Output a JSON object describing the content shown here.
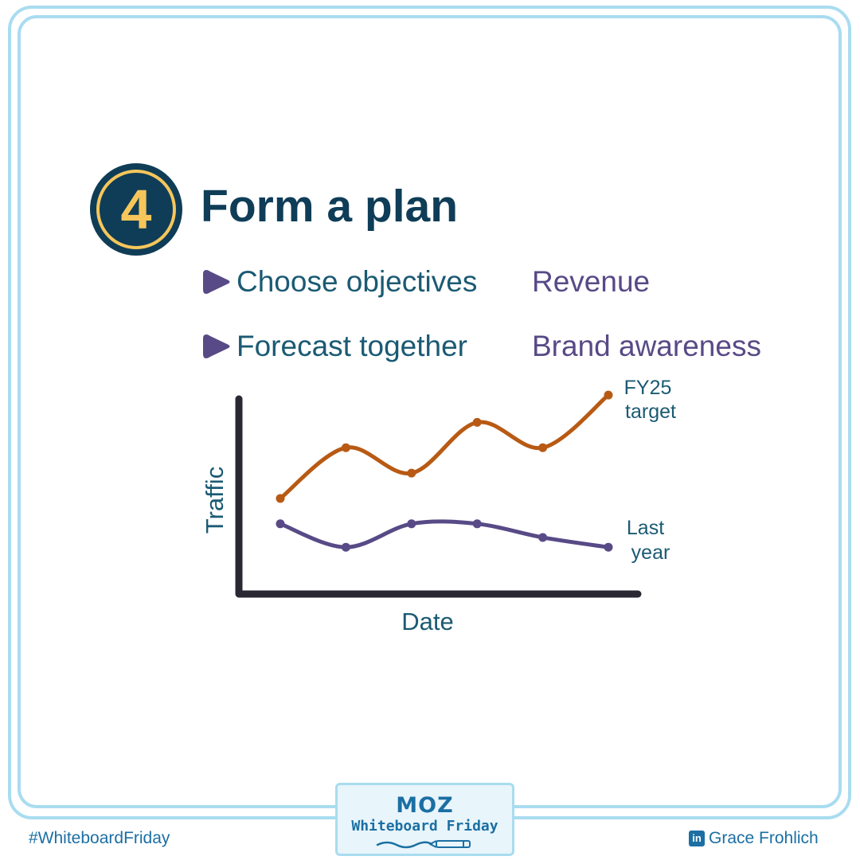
{
  "step": {
    "number": "4",
    "title": "Form a plan"
  },
  "bullets": [
    {
      "text": "Choose objectives",
      "sub": "Revenue"
    },
    {
      "text": "Forecast together",
      "sub": "Brand awareness"
    }
  ],
  "chart_data": {
    "type": "line",
    "title": "",
    "xlabel": "Date",
    "ylabel": "Traffic",
    "ylim": [
      0,
      10
    ],
    "x": [
      1,
      2,
      3,
      4,
      5,
      6
    ],
    "series": [
      {
        "name": "FY25 target",
        "values": [
          4.9,
          7.5,
          6.2,
          8.8,
          7.5,
          10.2
        ],
        "color": "#b85a14"
      },
      {
        "name": "Last year",
        "values": [
          3.6,
          2.4,
          3.6,
          3.6,
          2.9,
          2.4
        ],
        "color": "#584a86"
      }
    ],
    "series_labels": [
      {
        "lines": [
          "FY25",
          "target"
        ]
      },
      {
        "lines": [
          "Last",
          "year"
        ]
      }
    ],
    "grid": false,
    "axis_color": "#2a2833"
  },
  "branding": {
    "logo": "MOZ",
    "show_name": "Whiteboard Friday",
    "hashtag": "#WhiteboardFriday",
    "author": "Grace Frohlich",
    "linkedin_icon": "in"
  }
}
